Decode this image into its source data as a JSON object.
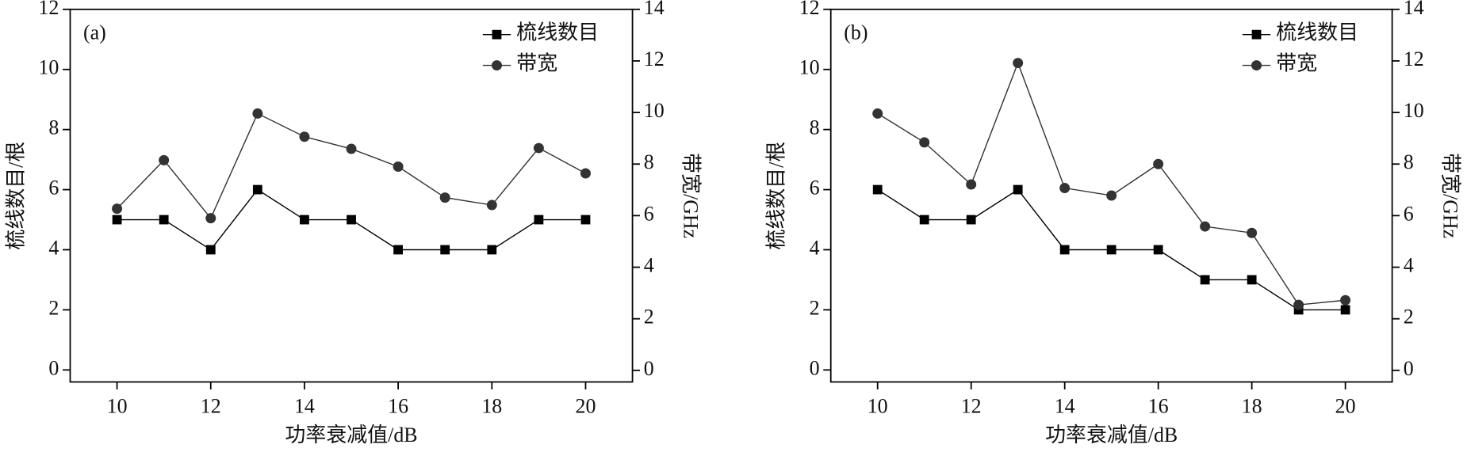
{
  "chart_data": [
    {
      "type": "line",
      "annotation": "(a)",
      "xlabel": "功率衰减值/dB",
      "ylabel": "梳线数目/根",
      "y2label": "带宽/GHz",
      "x": [
        10,
        11,
        12,
        13,
        14,
        15,
        16,
        17,
        18,
        19,
        20
      ],
      "xlim": [
        9,
        21
      ],
      "xticks": [
        10,
        12,
        14,
        16,
        18,
        20
      ],
      "ylim": [
        -0.4,
        12
      ],
      "yticks": [
        0,
        2,
        4,
        6,
        8,
        10,
        12
      ],
      "y2lim": [
        -0.45,
        14
      ],
      "y2ticks": [
        0,
        2,
        4,
        6,
        8,
        10,
        12,
        14
      ],
      "legend": "upper right",
      "series": [
        {
          "name": "梳线数目",
          "color": "#000000",
          "marker": "square",
          "values": [
            5,
            5,
            4,
            6,
            5,
            5,
            4,
            4,
            4,
            5,
            5
          ]
        },
        {
          "name": "带宽",
          "color": "#333333",
          "marker": "circle",
          "axis": "y2",
          "values": [
            6.27,
            8.15,
            5.9,
            9.96,
            9.06,
            8.59,
            7.9,
            6.7,
            6.41,
            8.62,
            7.64
          ]
        }
      ]
    },
    {
      "type": "line",
      "annotation": "(b)",
      "xlabel": "功率衰减值/dB",
      "ylabel": "梳线数目/根",
      "y2label": "带宽/GHz",
      "x": [
        10,
        11,
        12,
        13,
        14,
        15,
        16,
        17,
        18,
        19,
        20
      ],
      "xlim": [
        9,
        21
      ],
      "xticks": [
        10,
        12,
        14,
        16,
        18,
        20
      ],
      "ylim": [
        -0.4,
        12
      ],
      "yticks": [
        0,
        2,
        4,
        6,
        8,
        10,
        12
      ],
      "y2lim": [
        -0.45,
        14
      ],
      "y2ticks": [
        0,
        2,
        4,
        6,
        8,
        10,
        12,
        14
      ],
      "legend": "upper right",
      "series": [
        {
          "name": "梳线数目",
          "color": "#000000",
          "marker": "square",
          "values": [
            6,
            5,
            5,
            6,
            4,
            4,
            4,
            3,
            3,
            2,
            2
          ]
        },
        {
          "name": "带宽",
          "color": "#333333",
          "marker": "circle",
          "axis": "y2",
          "values": [
            9.96,
            8.84,
            7.21,
            11.92,
            7.07,
            6.78,
            8.0,
            5.58,
            5.33,
            2.54,
            2.72
          ]
        }
      ]
    }
  ]
}
